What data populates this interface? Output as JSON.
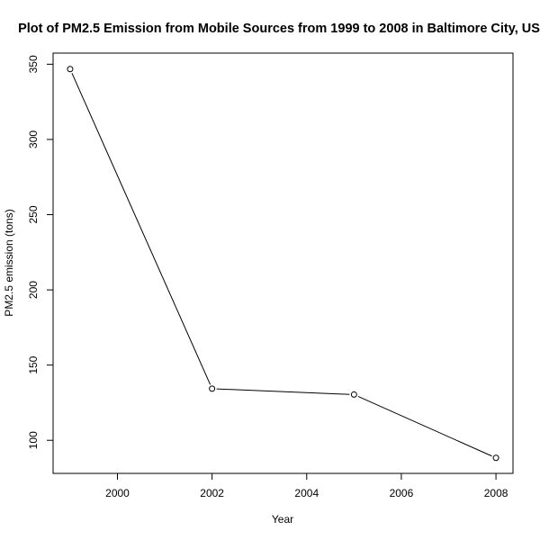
{
  "chart_data": {
    "type": "line",
    "title": "Plot of PM2.5 Emission from Mobile Sources from 1999 to 2008 in Baltimore City, US",
    "xlabel": "Year",
    "ylabel": "PM2.5 emission (tons)",
    "x": [
      1999,
      2002,
      2005,
      2008
    ],
    "series": [
      {
        "values": [
          346.8,
          134.3,
          130.4,
          88.3
        ]
      }
    ],
    "xlim": [
      1998.64,
      2008.36
    ],
    "ylim": [
      78.0,
      357.4
    ],
    "xticks": [
      2000,
      2002,
      2004,
      2006,
      2008
    ],
    "yticks": [
      100,
      150,
      200,
      250,
      300,
      350
    ],
    "grid": false,
    "legend": "none",
    "colors": {
      "line": "#000000",
      "marker_stroke": "#000000",
      "marker_fill": "#ffffff",
      "background": "#ffffff"
    }
  }
}
